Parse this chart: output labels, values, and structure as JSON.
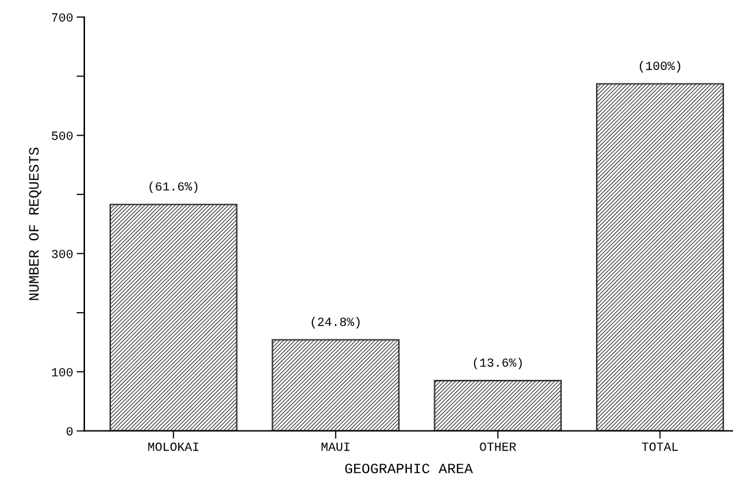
{
  "chart_data": {
    "type": "bar",
    "xlabel": "GEOGRAPHIC AREA",
    "ylabel": "NUMBER OF REQUESTS",
    "categories": [
      "MOLOKAI",
      "MAUI",
      "OTHER",
      "TOTAL"
    ],
    "values": [
      383,
      154,
      85,
      587
    ],
    "annotations": [
      {
        "text": "(61.6%)",
        "x": "MOLOKAI",
        "y": 383
      },
      {
        "text": "(24.8%)",
        "x": "MAUI",
        "y": 154
      },
      {
        "text": "(13.6%)",
        "x": "OTHER",
        "y": 85
      },
      {
        "text": "(100%)",
        "x": "TOTAL",
        "y": 587
      }
    ],
    "color": "#333333",
    "ylim": [
      0,
      700
    ],
    "yticks": [
      0,
      100,
      {
        "value": 200,
        "label": null
      },
      300,
      {
        "value": 400,
        "label": null
      },
      500,
      {
        "value": 600,
        "label": null
      },
      700
    ],
    "grid": false,
    "legend": false
  }
}
